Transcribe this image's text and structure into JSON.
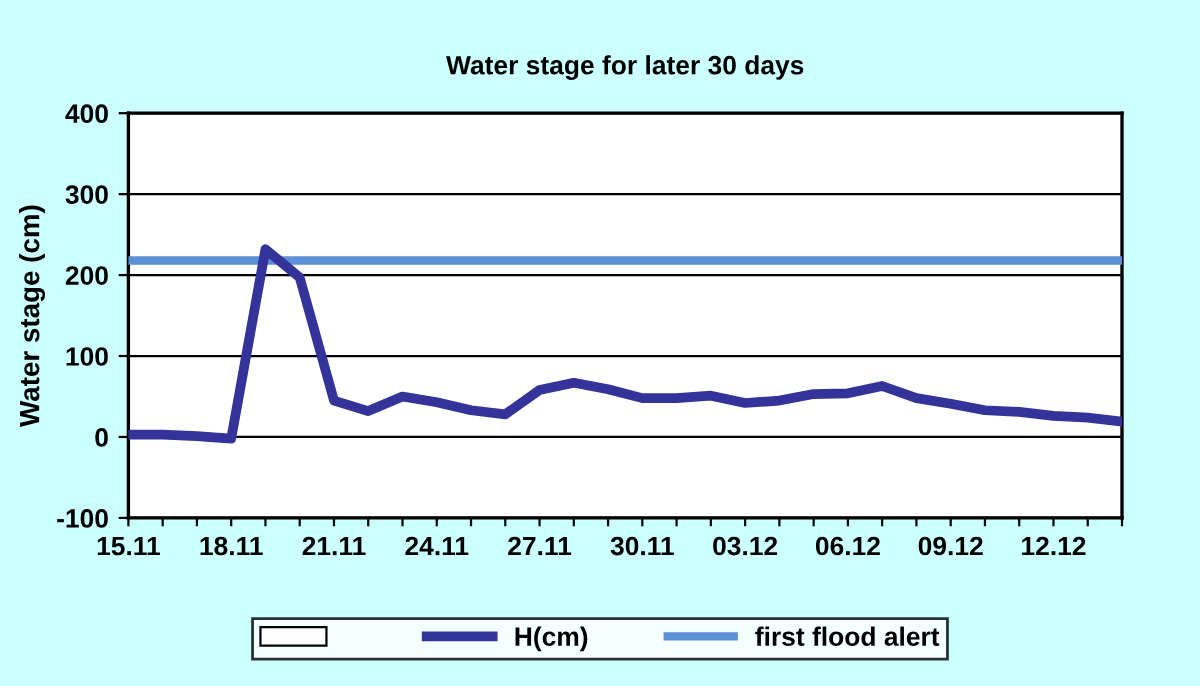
{
  "chart_data": {
    "type": "line",
    "title": "Water stage for later 30 days",
    "ylabel": "Water stage (cm)",
    "categories": [
      "15.11",
      null,
      null,
      "18.11",
      null,
      null,
      "21.11",
      null,
      null,
      "24.11",
      null,
      null,
      "27.11",
      null,
      null,
      "30.11",
      null,
      null,
      "03.12",
      null,
      null,
      "06.12",
      null,
      null,
      "09.12",
      null,
      null,
      "12.12",
      null,
      null
    ],
    "series": [
      {
        "name": "H(cm)",
        "color": "#333399",
        "values": [
          3,
          3,
          1,
          -2,
          232,
          197,
          45,
          32,
          50,
          43,
          33,
          28,
          58,
          67,
          59,
          48,
          48,
          51,
          42,
          45,
          53,
          54,
          63,
          48,
          41,
          33,
          31,
          26,
          24,
          19
        ]
      }
    ],
    "ref_lines": [
      {
        "axis": "y",
        "value": 218,
        "label": "first flood alert",
        "color": "#5b8fd6",
        "line_style": "solid"
      }
    ],
    "ylim": [
      -100,
      400
    ],
    "yticks": [
      -100,
      0,
      100,
      200,
      300,
      400
    ],
    "grid": "y",
    "legend": "bottom",
    "marker": "none",
    "line_style": "solid"
  }
}
